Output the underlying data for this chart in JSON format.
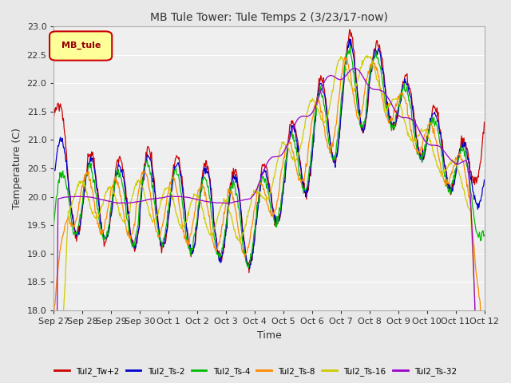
{
  "title": "MB Tule Tower: Tule Temps 2 (3/23/17-now)",
  "xlabel": "Time",
  "ylabel": "Temperature (C)",
  "ylim": [
    18.0,
    23.0
  ],
  "yticks": [
    18.0,
    18.5,
    19.0,
    19.5,
    20.0,
    20.5,
    21.0,
    21.5,
    22.0,
    22.5,
    23.0
  ],
  "xtick_labels": [
    "Sep 27",
    "Sep 28",
    "Sep 29",
    "Sep 30",
    "Oct 1",
    "Oct 2",
    "Oct 3",
    "Oct 4",
    "Oct 5",
    "Oct 6",
    "Oct 7",
    "Oct 8",
    "Oct 9",
    "Oct 10",
    "Oct 11",
    "Oct 12"
  ],
  "legend_label": "MB_tule",
  "series": [
    "Tul2_Tw+2",
    "Tul2_Ts-2",
    "Tul2_Ts-4",
    "Tul2_Ts-8",
    "Tul2_Ts-16",
    "Tul2_Ts-32"
  ],
  "colors": [
    "#cc0000",
    "#0000cc",
    "#00bb00",
    "#ff8800",
    "#cccc00",
    "#9900cc"
  ],
  "background_color": "#e8e8e8",
  "plot_background": "#efefef",
  "grid_color": "#ffffff",
  "figwidth": 6.4,
  "figheight": 4.8,
  "dpi": 100
}
